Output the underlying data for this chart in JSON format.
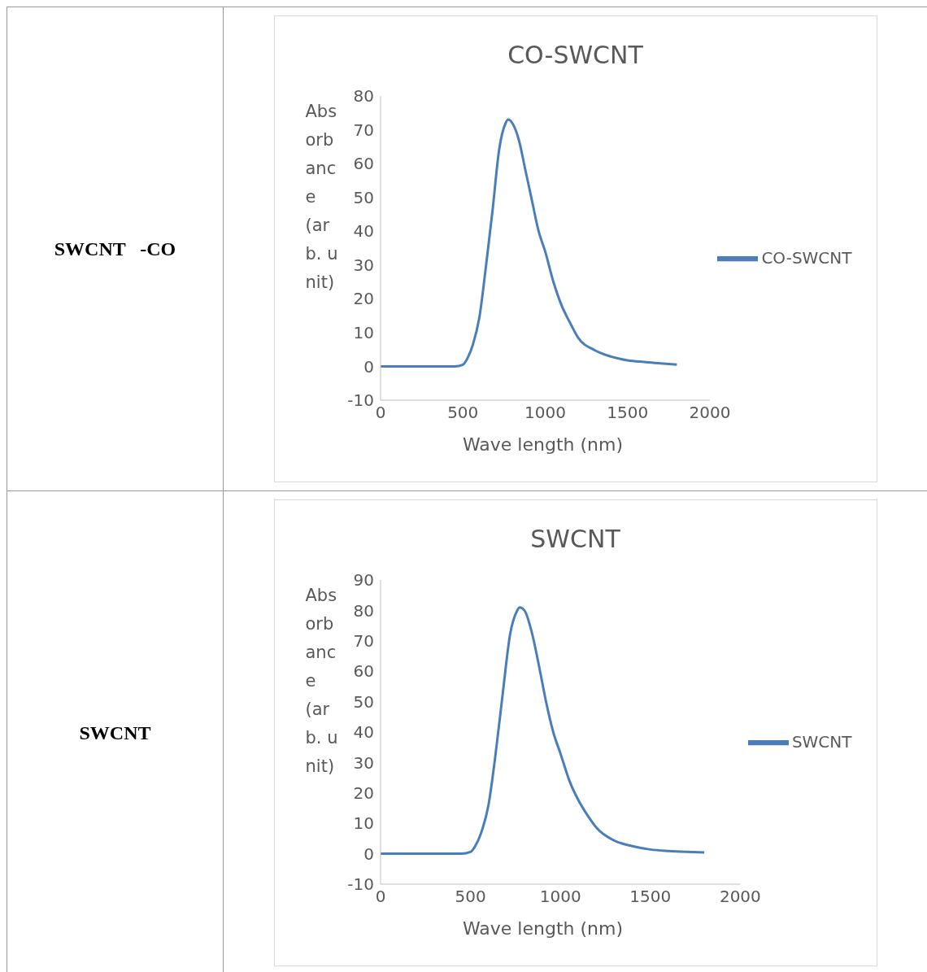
{
  "chart_data": [
    {
      "type": "line",
      "title": "CO-SWCNT",
      "xlabel": "Wave length (nm)",
      "ylabel": "Absorbance (arb. unit)",
      "annotations": [
        "SWCNT   -CO"
      ],
      "xlim": [
        0,
        2000
      ],
      "xticks": [
        0,
        500,
        1000,
        1500,
        2000
      ],
      "ylim": [
        -10,
        80
      ],
      "yticks": [
        -10,
        0,
        10,
        20,
        30,
        40,
        50,
        60,
        70,
        80
      ],
      "grid": false,
      "legend": "right",
      "marker": "none",
      "line_style": "solid",
      "series": [
        {
          "name": "CO-SWCNT",
          "color": "#4a7ebb",
          "x": [
            0,
            450,
            500,
            530,
            560,
            600,
            640,
            680,
            720,
            760,
            775,
            800,
            840,
            880,
            920,
            960,
            1000,
            1050,
            1100,
            1150,
            1200,
            1300,
            1400,
            1500,
            1600,
            1700,
            1800
          ],
          "values": [
            0,
            0,
            0.5,
            2.6,
            6.3,
            14.4,
            29.5,
            46,
            64,
            72,
            73,
            72,
            67,
            58,
            49,
            40,
            34,
            25,
            18,
            13,
            8.5,
            4.8,
            2.9,
            1.8,
            1.3,
            0.9,
            0.5
          ]
        }
      ]
    },
    {
      "type": "line",
      "title": "SWCNT",
      "xlabel": "Wave length (nm)",
      "ylabel": "Absorbance (arb. unit)",
      "annotations": [
        "SWCNT"
      ],
      "xlim": [
        0,
        2000
      ],
      "xticks": [
        0,
        500,
        1000,
        1500,
        2000
      ],
      "ylim": [
        -10,
        90
      ],
      "yticks": [
        -10,
        0,
        10,
        20,
        30,
        40,
        50,
        60,
        70,
        80,
        90
      ],
      "grid": false,
      "legend": "right",
      "marker": "none",
      "line_style": "solid",
      "series": [
        {
          "name": "SWCNT",
          "color": "#4a7ebb",
          "x": [
            0,
            450,
            500,
            530,
            560,
            600,
            640,
            680,
            720,
            760,
            773,
            800,
            840,
            880,
            920,
            960,
            1000,
            1050,
            1100,
            1150,
            1200,
            1300,
            1400,
            1500,
            1600,
            1700,
            1800
          ],
          "values": [
            0,
            0,
            0.6,
            2.9,
            7,
            16,
            33,
            53,
            72,
            80,
            81,
            80,
            73,
            62,
            50,
            40,
            33,
            24,
            17.6,
            12.7,
            8.6,
            4.3,
            2.5,
            1.4,
            0.9,
            0.6,
            0.4
          ]
        }
      ]
    }
  ]
}
